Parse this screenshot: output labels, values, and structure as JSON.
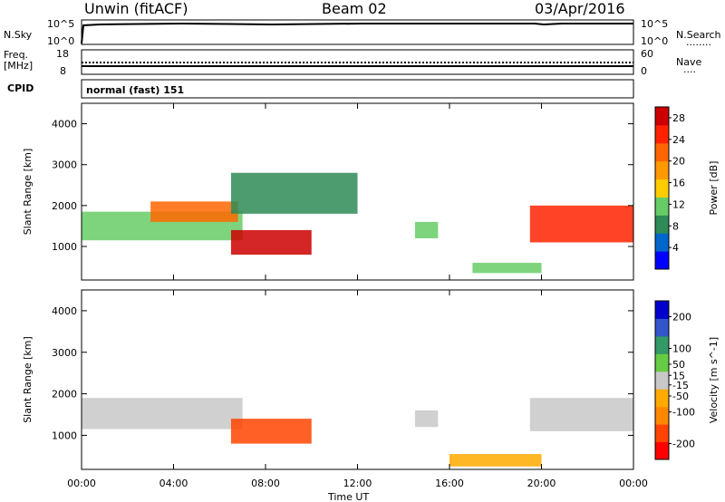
{
  "header": {
    "station": "Unwin (fitACF)",
    "beam": "Beam 02",
    "date": "03/Apr/2016"
  },
  "panels": {
    "nsky": {
      "left_label": "N.Sky",
      "left_ticks": [
        "10^5",
        "10^0"
      ],
      "right_ticks": [
        "10^5",
        "10^0"
      ],
      "right_label": "N.Search",
      "right_marker": "........"
    },
    "freq": {
      "left_label_1": "Freq.",
      "left_label_2": "[MHz]",
      "left_ticks": [
        "18",
        "8"
      ],
      "right_ticks": [
        "60",
        "0"
      ],
      "right_label": "Nave",
      "right_marker": "...."
    },
    "cpid": {
      "left_label": "CPID",
      "text": "normal (fast) 151"
    }
  },
  "colors": {
    "power_scale": [
      "#0000ff",
      "#0066cc",
      "#2e8b57",
      "#66cc66",
      "#ffcc00",
      "#ff9900",
      "#ff6600",
      "#ff2200",
      "#cc0000"
    ],
    "velocity_scale": [
      "#ff0000",
      "#ff4400",
      "#ff8800",
      "#ffaa00",
      "#c8c8c8",
      "#66cc44",
      "#339966",
      "#3355cc",
      "#0000cc"
    ]
  },
  "chart_data": [
    {
      "type": "heatmap",
      "title": "",
      "xlabel": "Time UT",
      "ylabel": "Slant Range [km]",
      "x_ticks": [
        "00:00",
        "04:00",
        "08:00",
        "12:00",
        "16:00",
        "20:00",
        "00:00"
      ],
      "xlim": [
        0,
        24
      ],
      "ylim": [
        180,
        4500
      ],
      "y_ticks": [
        1000,
        2000,
        3000,
        4000
      ],
      "colorbar": {
        "label": "Power [dB]",
        "ticks": [
          4,
          8,
          12,
          16,
          20,
          24,
          28
        ],
        "range": [
          0,
          30
        ]
      },
      "regions": [
        {
          "t": [
            0.0,
            7.0
          ],
          "r": [
            1150,
            1850
          ],
          "value": 10
        },
        {
          "t": [
            3.0,
            6.8
          ],
          "r": [
            1600,
            2100
          ],
          "value": 20
        },
        {
          "t": [
            6.5,
            10.0
          ],
          "r": [
            800,
            1400
          ],
          "value": 28
        },
        {
          "t": [
            6.5,
            12.0
          ],
          "r": [
            1800,
            2800
          ],
          "value": 8
        },
        {
          "t": [
            14.5,
            15.5
          ],
          "r": [
            1200,
            1600
          ],
          "value": 12
        },
        {
          "t": [
            17.0,
            20.0
          ],
          "r": [
            350,
            600
          ],
          "value": 10
        },
        {
          "t": [
            19.5,
            24.0
          ],
          "r": [
            1100,
            2000
          ],
          "value": 26
        }
      ]
    },
    {
      "type": "heatmap",
      "title": "",
      "xlabel": "Time UT",
      "ylabel": "Slant Range [km]",
      "x_ticks": [
        "00:00",
        "04:00",
        "08:00",
        "12:00",
        "16:00",
        "20:00",
        "00:00"
      ],
      "xlim": [
        0,
        24
      ],
      "ylim": [
        180,
        4500
      ],
      "y_ticks": [
        1000,
        2000,
        3000,
        4000
      ],
      "colorbar": {
        "label": "Velocity [m s^-1]",
        "ticks": [
          -200,
          -100,
          -50,
          -15,
          15,
          50,
          100,
          200
        ],
        "range": [
          -250,
          250
        ]
      },
      "regions": [
        {
          "t": [
            0.0,
            7.0
          ],
          "r": [
            1150,
            1900
          ],
          "value": 0
        },
        {
          "t": [
            6.5,
            10.0
          ],
          "r": [
            800,
            1400
          ],
          "value": -180
        },
        {
          "t": [
            14.5,
            15.5
          ],
          "r": [
            1200,
            1600
          ],
          "value": 0
        },
        {
          "t": [
            16.0,
            20.0
          ],
          "r": [
            250,
            550
          ],
          "value": -40
        },
        {
          "t": [
            19.5,
            24.0
          ],
          "r": [
            1100,
            1900
          ],
          "value": 0
        }
      ]
    }
  ]
}
